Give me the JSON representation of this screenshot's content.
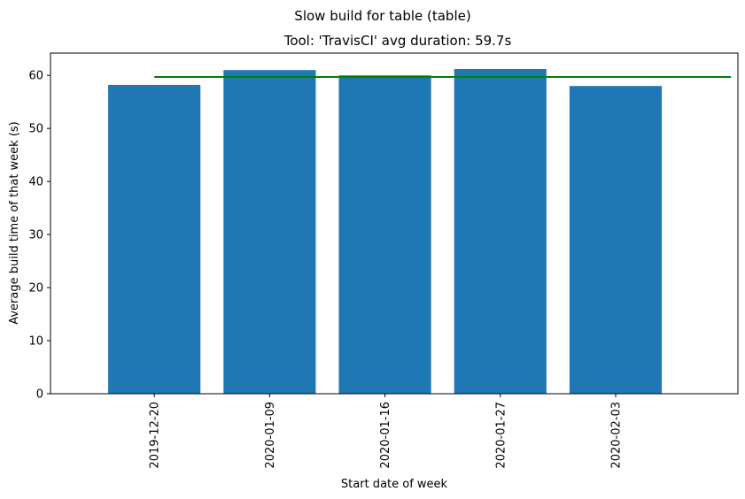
{
  "chart_data": {
    "type": "bar",
    "suptitle": "Slow build for table (table)",
    "title": "Tool: 'TravisCI' avg duration: 59.7s",
    "xlabel": "Start date of week",
    "ylabel": "Average build time of that week (s)",
    "categories": [
      "2019-12-20",
      "2020-01-09",
      "2020-01-16",
      "2020-01-27",
      "2020-02-03"
    ],
    "values": [
      58.2,
      61.0,
      60.0,
      61.2,
      58.0
    ],
    "average_line": {
      "value": 59.7,
      "color": "#008000"
    },
    "ylim": [
      0,
      64.2
    ],
    "yticks": [
      0,
      10,
      20,
      30,
      40,
      50,
      60
    ],
    "bar_color": "#1f77b4",
    "grid": false,
    "legend": "none"
  }
}
